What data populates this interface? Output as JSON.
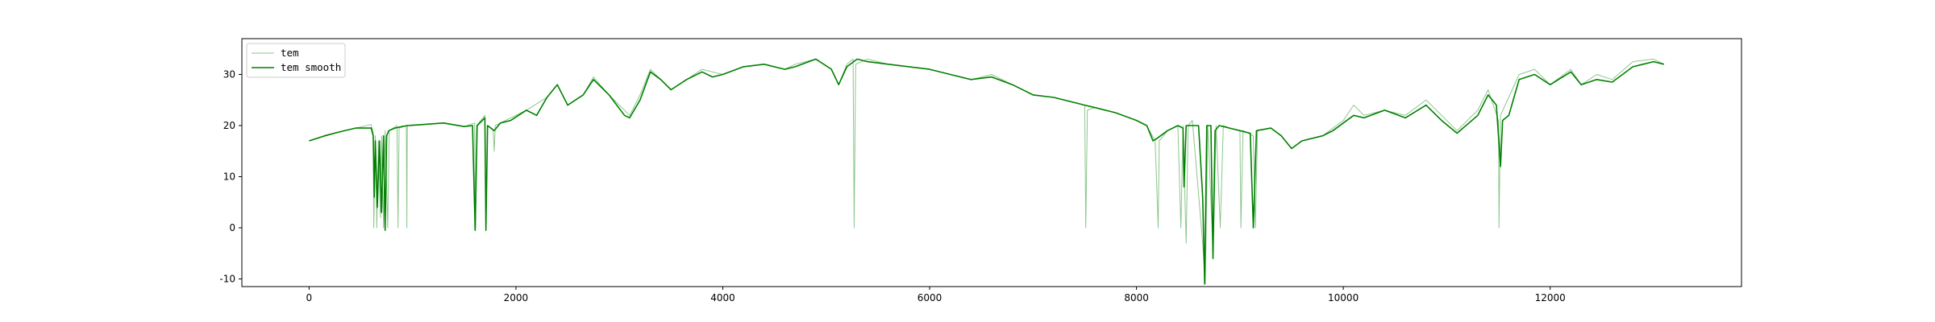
{
  "chart_data": {
    "type": "line",
    "title": "",
    "xlabel": "",
    "ylabel": "",
    "xlim": [
      -650,
      13850
    ],
    "ylim": [
      -11.5,
      37.0
    ],
    "xticks": [
      0,
      2000,
      4000,
      6000,
      8000,
      10000,
      12000
    ],
    "xtick_labels": [
      "0",
      "2000",
      "4000",
      "6000",
      "8000",
      "10000",
      "12000"
    ],
    "yticks": [
      -10,
      0,
      10,
      20,
      30
    ],
    "ytick_labels": [
      "-10",
      "0",
      "10",
      "20",
      "30"
    ],
    "grid": false,
    "legend_position": "upper-left",
    "series": [
      {
        "name": "tem",
        "color": "#008000",
        "style": "thin-light",
        "points": [
          [
            0,
            17
          ],
          [
            300,
            18.8
          ],
          [
            600,
            20.2
          ],
          [
            620,
            18.5
          ],
          [
            625,
            0
          ],
          [
            640,
            18
          ],
          [
            655,
            0
          ],
          [
            670,
            17
          ],
          [
            690,
            2
          ],
          [
            700,
            18
          ],
          [
            720,
            0
          ],
          [
            735,
            19
          ],
          [
            760,
            0
          ],
          [
            775,
            19
          ],
          [
            850,
            20
          ],
          [
            860,
            0
          ],
          [
            870,
            19.5
          ],
          [
            940,
            20
          ],
          [
            945,
            0
          ],
          [
            950,
            20
          ],
          [
            1100,
            20.2
          ],
          [
            1300,
            20.5
          ],
          [
            1500,
            19.8
          ],
          [
            1600,
            20.5
          ],
          [
            1610,
            0
          ],
          [
            1620,
            20
          ],
          [
            1700,
            22
          ],
          [
            1710,
            0
          ],
          [
            1725,
            20
          ],
          [
            1780,
            19
          ],
          [
            1790,
            15
          ],
          [
            1800,
            20
          ],
          [
            1900,
            21
          ],
          [
            2100,
            23
          ],
          [
            2300,
            25.5
          ],
          [
            2400,
            28
          ],
          [
            2500,
            24
          ],
          [
            2650,
            26
          ],
          [
            2750,
            29.5
          ],
          [
            2900,
            26
          ],
          [
            3100,
            22
          ],
          [
            3200,
            26
          ],
          [
            3300,
            31
          ],
          [
            3400,
            29
          ],
          [
            3500,
            27
          ],
          [
            3650,
            29
          ],
          [
            3800,
            31
          ],
          [
            4000,
            30
          ],
          [
            4200,
            31.5
          ],
          [
            4400,
            32
          ],
          [
            4600,
            31
          ],
          [
            4700,
            32
          ],
          [
            4900,
            33
          ],
          [
            5050,
            31
          ],
          [
            5120,
            28
          ],
          [
            5200,
            32
          ],
          [
            5260,
            33
          ],
          [
            5270,
            0
          ],
          [
            5285,
            32
          ],
          [
            5400,
            33
          ],
          [
            5600,
            32
          ],
          [
            5800,
            31.5
          ],
          [
            6000,
            31
          ],
          [
            6200,
            30
          ],
          [
            6400,
            29
          ],
          [
            6600,
            30
          ],
          [
            6800,
            28
          ],
          [
            7000,
            26
          ],
          [
            7200,
            25.5
          ],
          [
            7400,
            24.5
          ],
          [
            7500,
            24
          ],
          [
            7510,
            0
          ],
          [
            7525,
            23
          ],
          [
            7600,
            23.5
          ],
          [
            7800,
            22.5
          ],
          [
            8000,
            21
          ],
          [
            8100,
            20
          ],
          [
            8180,
            17
          ],
          [
            8200,
            6
          ],
          [
            8210,
            0
          ],
          [
            8220,
            17
          ],
          [
            8300,
            19
          ],
          [
            8400,
            20
          ],
          [
            8430,
            0
          ],
          [
            8450,
            20
          ],
          [
            8480,
            -3
          ],
          [
            8500,
            20
          ],
          [
            8540,
            21
          ],
          [
            8640,
            -3
          ],
          [
            8665,
            -11
          ],
          [
            8690,
            20
          ],
          [
            8740,
            -5
          ],
          [
            8770,
            20
          ],
          [
            8810,
            0
          ],
          [
            8840,
            20
          ],
          [
            8900,
            19.5
          ],
          [
            9000,
            19
          ],
          [
            9010,
            0
          ],
          [
            9030,
            19
          ],
          [
            9130,
            18
          ],
          [
            9150,
            0
          ],
          [
            9170,
            19
          ],
          [
            9300,
            19.5
          ],
          [
            9400,
            18
          ],
          [
            9500,
            15.5
          ],
          [
            9600,
            17
          ],
          [
            9800,
            18
          ],
          [
            10000,
            21
          ],
          [
            10100,
            24
          ],
          [
            10200,
            22
          ],
          [
            10400,
            23
          ],
          [
            10600,
            22
          ],
          [
            10800,
            25
          ],
          [
            10950,
            22
          ],
          [
            11100,
            19
          ],
          [
            11300,
            23
          ],
          [
            11400,
            27
          ],
          [
            11500,
            21
          ],
          [
            11505,
            0
          ],
          [
            11520,
            22
          ],
          [
            11700,
            30
          ],
          [
            11850,
            31
          ],
          [
            12000,
            28
          ],
          [
            12200,
            31
          ],
          [
            12300,
            28
          ],
          [
            12450,
            30
          ],
          [
            12600,
            29
          ],
          [
            12800,
            32.5
          ],
          [
            13000,
            33
          ],
          [
            13100,
            32
          ]
        ]
      },
      {
        "name": "tem smooth",
        "color": "#008000",
        "style": "solid",
        "points": [
          [
            0,
            17
          ],
          [
            150,
            18
          ],
          [
            300,
            18.8
          ],
          [
            450,
            19.5
          ],
          [
            600,
            19.5
          ],
          [
            620,
            18
          ],
          [
            630,
            6
          ],
          [
            640,
            17
          ],
          [
            660,
            4
          ],
          [
            680,
            17
          ],
          [
            700,
            3
          ],
          [
            720,
            18
          ],
          [
            735,
            -0.5
          ],
          [
            750,
            18
          ],
          [
            770,
            19
          ],
          [
            830,
            19.5
          ],
          [
            900,
            19.8
          ],
          [
            950,
            20
          ],
          [
            1100,
            20.2
          ],
          [
            1300,
            20.5
          ],
          [
            1500,
            19.8
          ],
          [
            1580,
            20
          ],
          [
            1605,
            -0.5
          ],
          [
            1625,
            20
          ],
          [
            1700,
            21.5
          ],
          [
            1710,
            -0.5
          ],
          [
            1725,
            20
          ],
          [
            1790,
            19
          ],
          [
            1850,
            20.5
          ],
          [
            1950,
            21
          ],
          [
            2100,
            23
          ],
          [
            2200,
            22
          ],
          [
            2300,
            25.5
          ],
          [
            2400,
            28
          ],
          [
            2500,
            24
          ],
          [
            2650,
            26
          ],
          [
            2750,
            29
          ],
          [
            2900,
            26
          ],
          [
            3050,
            22
          ],
          [
            3100,
            21.5
          ],
          [
            3200,
            25
          ],
          [
            3300,
            30.5
          ],
          [
            3400,
            29
          ],
          [
            3500,
            27
          ],
          [
            3650,
            29
          ],
          [
            3800,
            30.5
          ],
          [
            3900,
            29.5
          ],
          [
            4000,
            30
          ],
          [
            4200,
            31.5
          ],
          [
            4400,
            32
          ],
          [
            4600,
            31
          ],
          [
            4700,
            31.5
          ],
          [
            4900,
            33
          ],
          [
            5050,
            31
          ],
          [
            5120,
            28
          ],
          [
            5200,
            31.5
          ],
          [
            5300,
            33
          ],
          [
            5400,
            32.5
          ],
          [
            5600,
            32
          ],
          [
            5800,
            31.5
          ],
          [
            6000,
            31
          ],
          [
            6200,
            30
          ],
          [
            6400,
            29
          ],
          [
            6600,
            29.5
          ],
          [
            6800,
            28
          ],
          [
            7000,
            26
          ],
          [
            7200,
            25.5
          ],
          [
            7400,
            24.5
          ],
          [
            7500,
            24
          ],
          [
            7600,
            23.5
          ],
          [
            7800,
            22.5
          ],
          [
            8000,
            21
          ],
          [
            8100,
            20
          ],
          [
            8160,
            17
          ],
          [
            8200,
            17.5
          ],
          [
            8300,
            19
          ],
          [
            8400,
            20
          ],
          [
            8450,
            19.5
          ],
          [
            8460,
            8
          ],
          [
            8480,
            20
          ],
          [
            8550,
            20
          ],
          [
            8600,
            20
          ],
          [
            8640,
            6
          ],
          [
            8660,
            -11
          ],
          [
            8680,
            20
          ],
          [
            8720,
            20
          ],
          [
            8740,
            -6
          ],
          [
            8760,
            19
          ],
          [
            8800,
            20
          ],
          [
            8900,
            19.5
          ],
          [
            9000,
            19
          ],
          [
            9100,
            18.5
          ],
          [
            9130,
            0
          ],
          [
            9160,
            19
          ],
          [
            9300,
            19.5
          ],
          [
            9400,
            18
          ],
          [
            9500,
            15.5
          ],
          [
            9600,
            17
          ],
          [
            9800,
            18
          ],
          [
            9900,
            19
          ],
          [
            10000,
            20.5
          ],
          [
            10100,
            22
          ],
          [
            10200,
            21.5
          ],
          [
            10400,
            23
          ],
          [
            10600,
            21.5
          ],
          [
            10800,
            24
          ],
          [
            10950,
            21
          ],
          [
            11100,
            18.5
          ],
          [
            11300,
            22
          ],
          [
            11400,
            26
          ],
          [
            11480,
            24
          ],
          [
            11520,
            12
          ],
          [
            11540,
            21
          ],
          [
            11600,
            22
          ],
          [
            11700,
            29
          ],
          [
            11850,
            30
          ],
          [
            12000,
            28
          ],
          [
            12200,
            30.5
          ],
          [
            12300,
            28
          ],
          [
            12450,
            29
          ],
          [
            12600,
            28.5
          ],
          [
            12800,
            31.5
          ],
          [
            13000,
            32.5
          ],
          [
            13100,
            32
          ]
        ]
      }
    ]
  }
}
